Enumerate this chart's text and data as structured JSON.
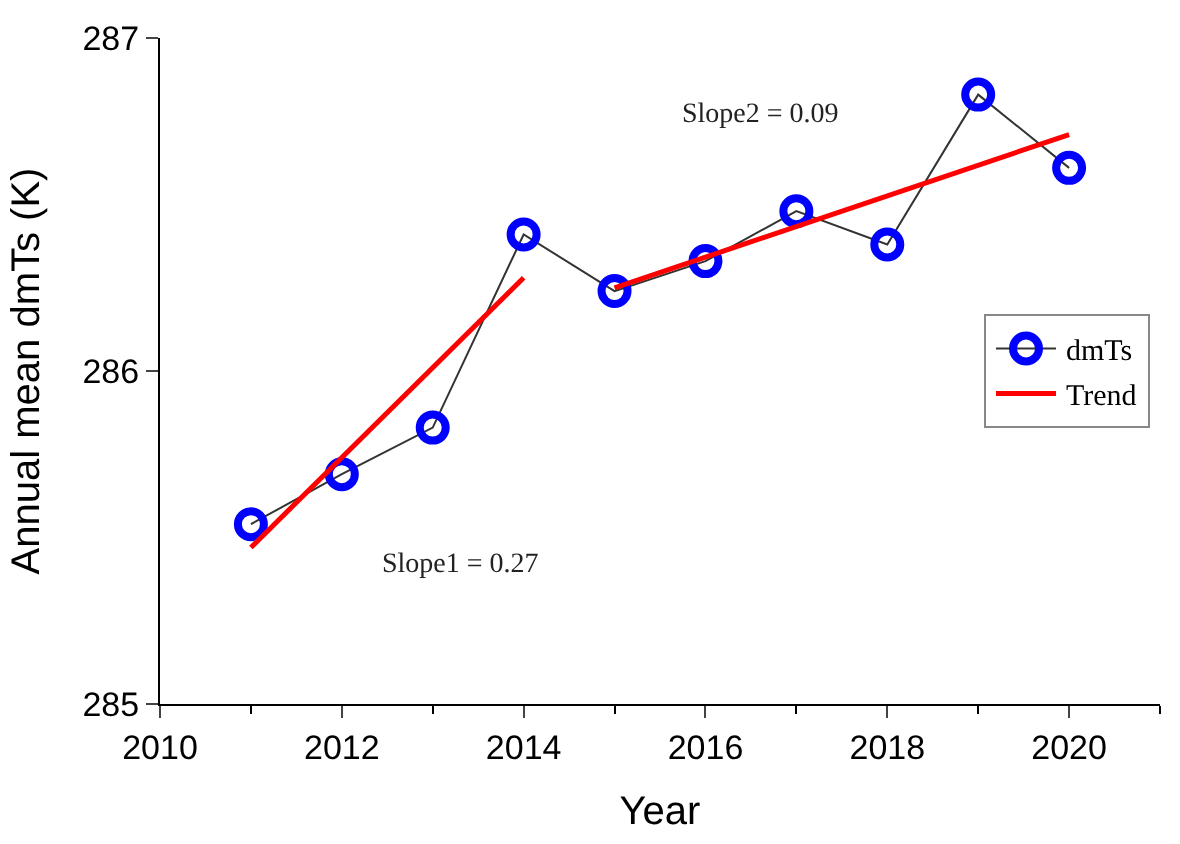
{
  "chart_data": {
    "type": "line",
    "xlabel": "Year",
    "ylabel": "Annual mean dmTs (K)",
    "series": [
      {
        "name": "dmTs",
        "color": "#0000ff",
        "marker": "circle",
        "x": [
          2011,
          2012,
          2013,
          2014,
          2015,
          2016,
          2017,
          2018,
          2019,
          2020
        ],
        "values": [
          285.54,
          285.69,
          285.83,
          286.41,
          286.24,
          286.33,
          286.48,
          286.38,
          286.83,
          286.61
        ]
      },
      {
        "name": "Trend",
        "color": "#ff0000",
        "marker": "none",
        "x": [
          2011,
          2014,
          null,
          2015,
          2020
        ],
        "values": [
          285.47,
          286.28,
          null,
          286.25,
          286.71
        ]
      }
    ],
    "xlim": [
      2010,
      2021
    ],
    "xticks": [
      2010,
      2012,
      2014,
      2016,
      2018,
      2020
    ],
    "ylim": [
      285,
      287
    ],
    "yticks": [
      285,
      286,
      287
    ],
    "legend": "right",
    "annotations": [
      "Slope1 = 0.27",
      "Slope2 = 0.09"
    ]
  }
}
